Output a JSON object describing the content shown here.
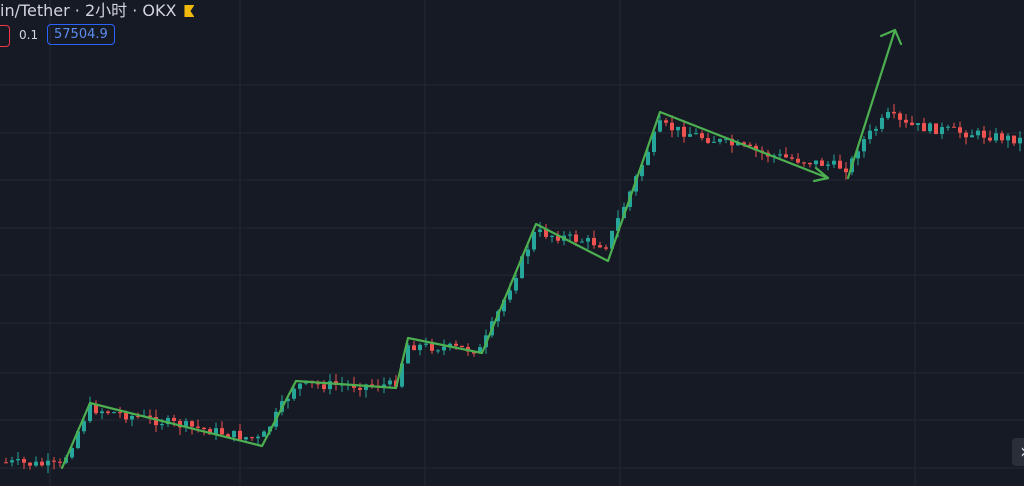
{
  "header": {
    "title": "in/Tether · 2小时 · OKX",
    "step": "0.1",
    "price": "57504.9"
  },
  "nav": {
    "next": "›"
  }
}
